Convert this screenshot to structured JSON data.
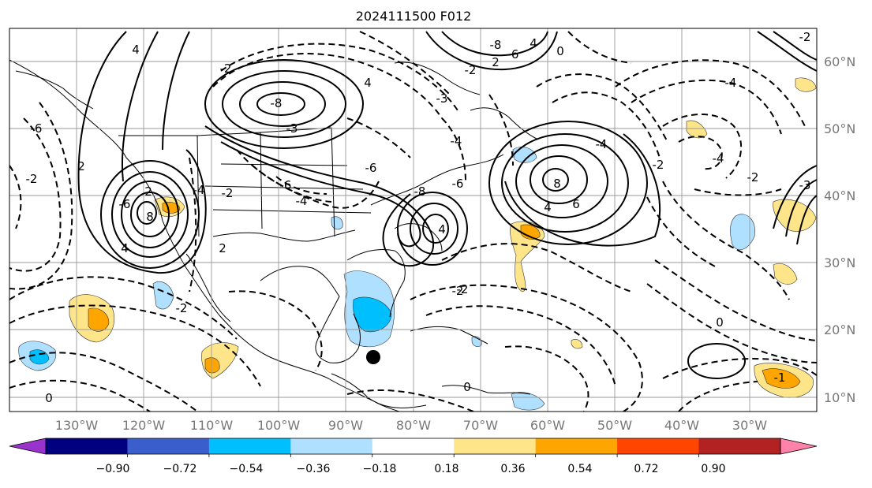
{
  "title": "2024111500 F012",
  "lon_labels": [
    "130°W",
    "120°W",
    "110°W",
    "100°W",
    "90°W",
    "80°W",
    "70°W",
    "60°W",
    "50°W",
    "40°W",
    "30°W"
  ],
  "lat_labels": [
    "60°N",
    "50°N",
    "40°N",
    "30°N",
    "20°N",
    "10°N"
  ],
  "colorbar": {
    "ticks": [
      "−0.90",
      "−0.72",
      "−0.54",
      "−0.36",
      "−0.18",
      "0.18",
      "0.36",
      "0.54",
      "0.72",
      "0.90"
    ],
    "colors": [
      "#9933cc",
      "#000080",
      "#3a5fcd",
      "#00bfff",
      "#b0e0ff",
      "#ffffff",
      "#ffe58a",
      "#ffa500",
      "#ff4500",
      "#b22222",
      "#ff82ab"
    ]
  },
  "contour_labels": [
    "4",
    "2",
    "0",
    "8",
    "4",
    "2",
    "-6",
    "4",
    "-2",
    "-3",
    "-8",
    "-6",
    "-4",
    "-2",
    "2",
    "-2",
    "-4",
    "-2",
    "-6",
    "-3",
    "4",
    "-8",
    "-6",
    "-4",
    "-2",
    "2",
    "0",
    "-8",
    "-6",
    "-4",
    "-4",
    "-6",
    "-4",
    "-2",
    "-3",
    "0",
    "-1",
    "-2",
    "4",
    "-2",
    "0",
    "8",
    "4",
    "6",
    "-2",
    "-2"
  ],
  "marker": "storm-center"
}
